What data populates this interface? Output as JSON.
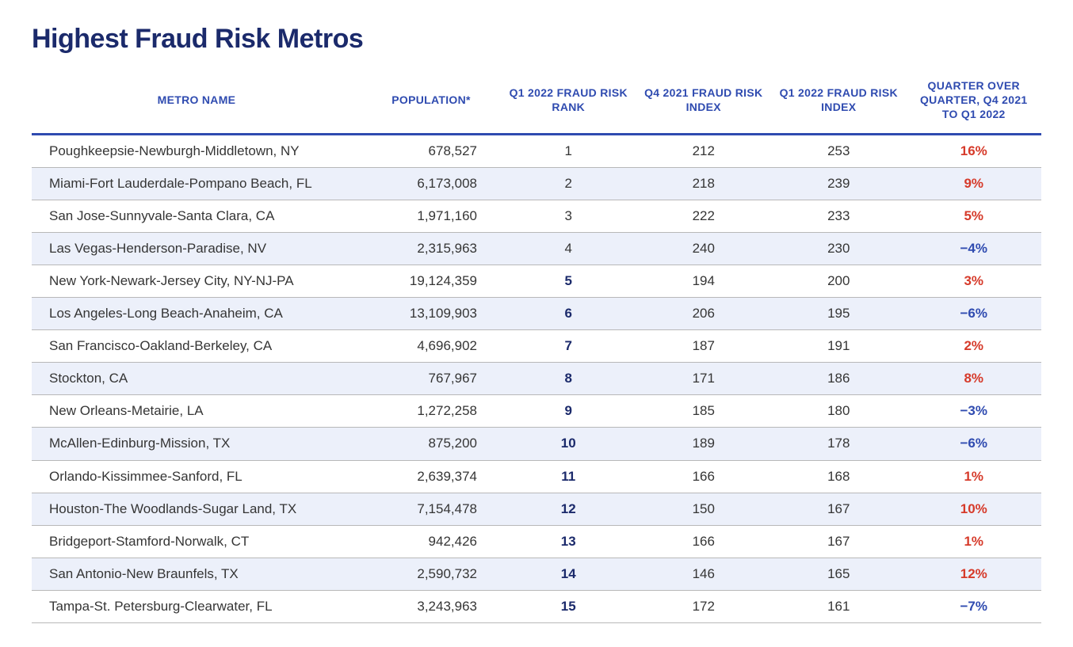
{
  "title": "Highest Fraud Risk Metros",
  "columns": [
    "METRO NAME",
    "POPULATION*",
    "Q1 2022 FRAUD RISK RANK",
    "Q4 2021 FRAUD RISK INDEX",
    "Q1 2022 FRAUD RISK INDEX",
    "QUARTER OVER QUARTER, Q4 2021 TO Q1 2022"
  ],
  "rows": [
    {
      "metro": "Poughkeepsie-Newburgh-Middletown, NY",
      "population": "678,527",
      "rank": "1",
      "q4_2021": "212",
      "q1_2022": "253",
      "qoq": "16%",
      "dir": "up"
    },
    {
      "metro": "Miami-Fort Lauderdale-Pompano Beach, FL",
      "population": "6,173,008",
      "rank": "2",
      "q4_2021": "218",
      "q1_2022": "239",
      "qoq": "9%",
      "dir": "up"
    },
    {
      "metro": "San Jose-Sunnyvale-Santa Clara, CA",
      "population": "1,971,160",
      "rank": "3",
      "q4_2021": "222",
      "q1_2022": "233",
      "qoq": "5%",
      "dir": "up"
    },
    {
      "metro": "Las Vegas-Henderson-Paradise, NV",
      "population": "2,315,963",
      "rank": "4",
      "q4_2021": "240",
      "q1_2022": "230",
      "qoq": "−4%",
      "dir": "down"
    },
    {
      "metro": "New York-Newark-Jersey City, NY-NJ-PA",
      "population": "19,124,359",
      "rank": "5",
      "q4_2021": "194",
      "q1_2022": "200",
      "qoq": "3%",
      "dir": "up"
    },
    {
      "metro": "Los Angeles-Long Beach-Anaheim, CA",
      "population": "13,109,903",
      "rank": "6",
      "q4_2021": "206",
      "q1_2022": "195",
      "qoq": "−6%",
      "dir": "down"
    },
    {
      "metro": "San Francisco-Oakland-Berkeley, CA",
      "population": "4,696,902",
      "rank": "7",
      "q4_2021": "187",
      "q1_2022": "191",
      "qoq": "2%",
      "dir": "up"
    },
    {
      "metro": "Stockton, CA",
      "population": "767,967",
      "rank": "8",
      "q4_2021": "171",
      "q1_2022": "186",
      "qoq": "8%",
      "dir": "up"
    },
    {
      "metro": "New Orleans-Metairie, LA",
      "population": "1,272,258",
      "rank": "9",
      "q4_2021": "185",
      "q1_2022": "180",
      "qoq": "−3%",
      "dir": "down"
    },
    {
      "metro": "McAllen-Edinburg-Mission, TX",
      "population": "875,200",
      "rank": "10",
      "q4_2021": "189",
      "q1_2022": "178",
      "qoq": "−6%",
      "dir": "down"
    },
    {
      "metro": "Orlando-Kissimmee-Sanford, FL",
      "population": "2,639,374",
      "rank": "11",
      "q4_2021": "166",
      "q1_2022": "168",
      "qoq": "1%",
      "dir": "up"
    },
    {
      "metro": "Houston-The Woodlands-Sugar Land, TX",
      "population": "7,154,478",
      "rank": "12",
      "q4_2021": "150",
      "q1_2022": "167",
      "qoq": "10%",
      "dir": "up"
    },
    {
      "metro": "Bridgeport-Stamford-Norwalk, CT",
      "population": "942,426",
      "rank": "13",
      "q4_2021": "166",
      "q1_2022": "167",
      "qoq": "1%",
      "dir": "up"
    },
    {
      "metro": "San Antonio-New Braunfels, TX",
      "population": "2,590,732",
      "rank": "14",
      "q4_2021": "146",
      "q1_2022": "165",
      "qoq": "12%",
      "dir": "up"
    },
    {
      "metro": "Tampa-St. Petersburg-Clearwater, FL",
      "population": "3,243,963",
      "rank": "15",
      "q4_2021": "172",
      "q1_2022": "161",
      "qoq": "−7%",
      "dir": "down"
    }
  ],
  "styling": {
    "title_color": "#1b2a6b",
    "header_color": "#2f4bb0",
    "header_border": "#2f4bb0",
    "row_border": "#b8b8b8",
    "stripe_bg": "#ecf0fa",
    "text_color": "#353535",
    "up_color": "#d63a2a",
    "down_color": "#2f4bb0",
    "title_fontsize": 34,
    "header_fontsize": 14,
    "cell_fontsize": 17
  }
}
